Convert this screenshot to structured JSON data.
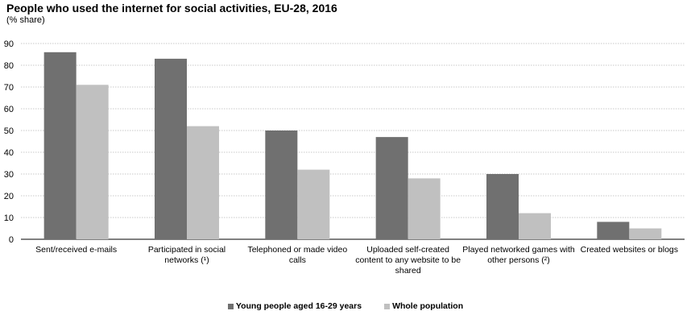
{
  "chart_data": {
    "type": "bar",
    "title": "People who used the internet for social activities, EU-28, 2016",
    "subtitle": "(% share)",
    "categories": [
      [
        "Sent/received e-mails"
      ],
      [
        "Participated in social",
        "networks (¹)"
      ],
      [
        "Telephoned or made video",
        "calls"
      ],
      [
        "Uploaded self-created",
        "content to any website to be",
        "shared"
      ],
      [
        "Played networked games with",
        "other persons (²)"
      ],
      [
        "Created websites or blogs"
      ]
    ],
    "series": [
      {
        "name": "Young people aged 16-29 years",
        "color": "#707070",
        "values": [
          86,
          83,
          50,
          47,
          30,
          8
        ]
      },
      {
        "name": "Whole population",
        "color": "#c0c0c0",
        "values": [
          71,
          52,
          32,
          28,
          12,
          5
        ]
      }
    ],
    "ylim": [
      0,
      90
    ],
    "yticks": [
      0,
      10,
      20,
      30,
      40,
      50,
      60,
      70,
      80,
      90
    ],
    "grid": true,
    "legend_position": "bottom-center"
  }
}
